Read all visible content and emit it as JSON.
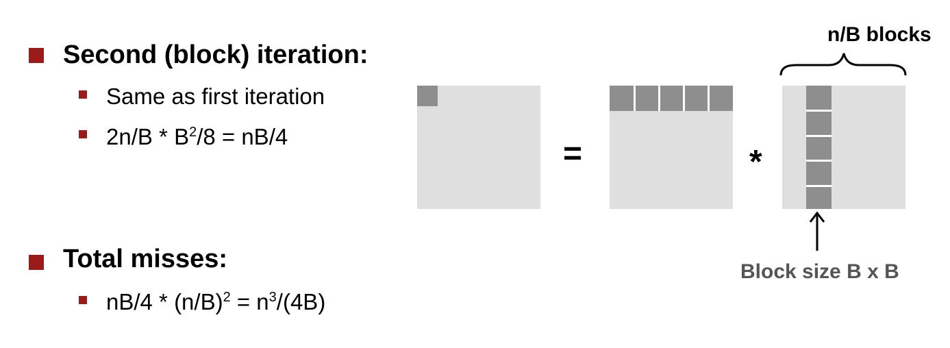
{
  "left_text": {
    "second_iteration": {
      "heading": "Second (block) iteration:",
      "items": [
        {
          "text": "Same as first iteration"
        },
        {
          "a": "2n/B * B",
          "sup": "2",
          "b": "/8 = nB/4"
        }
      ]
    },
    "total_misses": {
      "heading": "Total misses:",
      "items": [
        {
          "a": "nB/4 * (n/B)",
          "sup1": "2",
          "b": " = n",
          "sup2": "3",
          "c": "/(4B)"
        }
      ]
    }
  },
  "diagram": {
    "equals_symbol": "=",
    "multiply_symbol": "*",
    "top_label": "n/B blocks",
    "bottom_label": "Block size B x B",
    "colors": {
      "matrix_fill": "#dfdfdf",
      "block_fill": "#8e8e8e",
      "bullet": "#9b1b1b"
    }
  }
}
